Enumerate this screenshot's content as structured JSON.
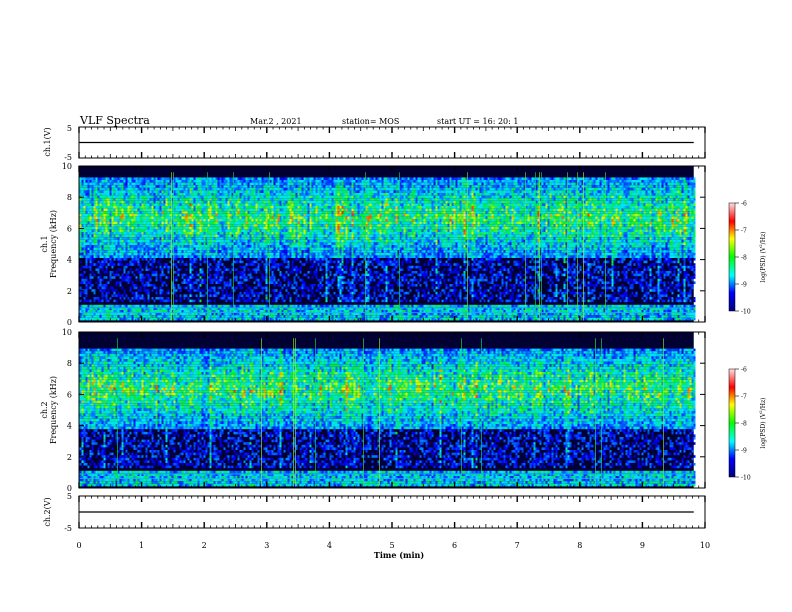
{
  "header": {
    "title": "VLF Spectra",
    "date": "Mar.2  , 2021",
    "station": "station= MOS",
    "start": "start  UT  =   16: 20: 1"
  },
  "chart_data": [
    {
      "type": "line",
      "name": "ch1-waveform",
      "ylabel": "ch.1(V)",
      "ylim": [
        -5,
        5
      ],
      "yticks": [
        "5",
        "-5"
      ],
      "xlim": [
        0,
        10
      ],
      "x": [
        0,
        9.82
      ],
      "values": [
        0,
        0
      ]
    },
    {
      "type": "heatmap",
      "name": "ch1-spectrogram",
      "ylabel": "ch.1\nFrequency  (kHz)",
      "ylim": [
        0,
        10
      ],
      "yticks": [
        "0",
        "2",
        "4",
        "6",
        "8",
        "10"
      ],
      "xlim": [
        0,
        10
      ],
      "data_xmax": 9.82,
      "colorbar": {
        "label": "log(PSD) (V²/Hz)",
        "range": [
          -10,
          -6
        ],
        "ticks": [
          "-6",
          "-7",
          "-8",
          "-9",
          "-10"
        ]
      }
    },
    {
      "type": "heatmap",
      "name": "ch2-spectrogram",
      "ylabel": "ch.2\nFrequency  (kHz)",
      "ylim": [
        0,
        10
      ],
      "yticks": [
        "0",
        "2",
        "4",
        "6",
        "8",
        "10"
      ],
      "xlim": [
        0,
        10
      ],
      "data_xmax": 9.82,
      "colorbar": {
        "label": "log(PSD) (V²/Hz)",
        "range": [
          -10,
          -6
        ],
        "ticks": [
          "-6",
          "-7",
          "-8",
          "-9",
          "-10"
        ]
      }
    },
    {
      "type": "line",
      "name": "ch2-waveform",
      "ylabel": "ch.2(V)",
      "ylim": [
        -5,
        5
      ],
      "yticks": [
        "5",
        "-5"
      ],
      "xlim": [
        0,
        10
      ],
      "x": [
        0,
        9.82
      ],
      "values": [
        0,
        0
      ],
      "xlabel": "Time  (min)",
      "xticks": [
        "0",
        "1",
        "2",
        "3",
        "4",
        "5",
        "6",
        "7",
        "8",
        "9",
        "10"
      ]
    }
  ],
  "colors": {
    "background": "#000033",
    "scale": [
      "#000080",
      "#0000ff",
      "#00ffff",
      "#00ff00",
      "#ffff00",
      "#ff0000",
      "#ffffff"
    ]
  }
}
